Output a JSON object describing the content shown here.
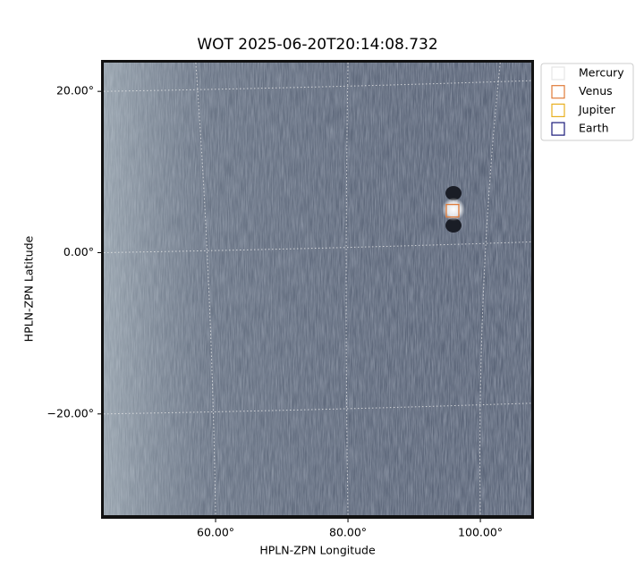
{
  "chart_data": {
    "type": "image",
    "title": "WOT 2025-06-20T20:14:08.732",
    "x_label": "HPLN-ZPN Longitude",
    "y_label": "HPLN-ZPN Latitude",
    "xlim": [
      42.7,
      108.1
    ],
    "ylim": [
      -33.0,
      23.9
    ],
    "xticks": [
      {
        "value": 60,
        "label": "60.00°"
      },
      {
        "value": 80,
        "label": "80.00°"
      },
      {
        "value": 100,
        "label": "100.00°"
      }
    ],
    "yticks": [
      {
        "value": -20,
        "label": "−20.00°"
      },
      {
        "value": 0,
        "label": "0.00°"
      },
      {
        "value": 20,
        "label": "20.00°"
      }
    ],
    "grid": true,
    "legend": "upper right outside",
    "series": [
      {
        "name": "Mercury",
        "color": "#e6e6e6",
        "x": [],
        "y": []
      },
      {
        "name": "Venus",
        "color": "#e07b39",
        "x": [
          95.8
        ],
        "y": [
          5.2
        ]
      },
      {
        "name": "Jupiter",
        "color": "#e8b020",
        "x": [],
        "y": []
      },
      {
        "name": "Earth",
        "color": "#1a1a7a",
        "x": [],
        "y": []
      }
    ]
  }
}
